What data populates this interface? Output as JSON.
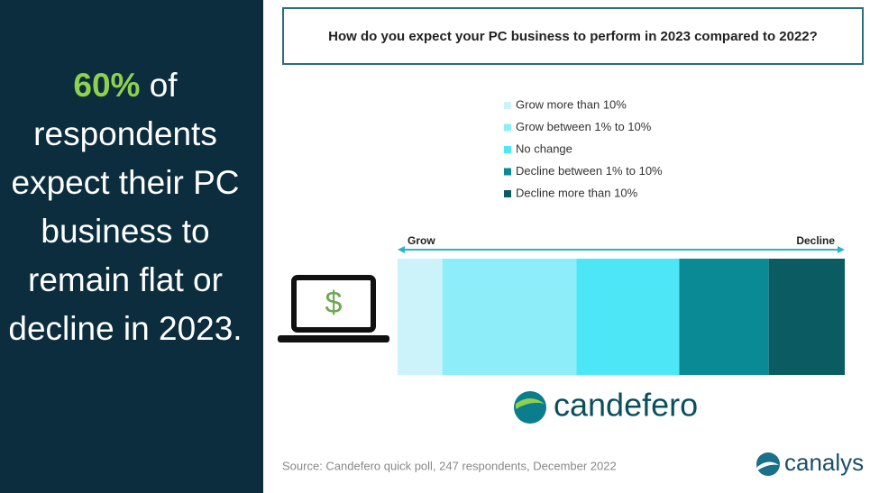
{
  "sidebar": {
    "highlight": "60%",
    "text": "of respondents expect their PC business to remain flat or decline in 2023."
  },
  "chart_data": {
    "type": "bar",
    "orientation": "horizontal",
    "stacked": true,
    "title": "How do you expect your PC business to perform in 2023 compared to 2022?",
    "series": [
      {
        "name": "Grow more than 10%",
        "color": "#cdf3fa",
        "values": [
          10
        ]
      },
      {
        "name": "Grow between 1% to 10%",
        "color": "#8deefa",
        "values": [
          30
        ]
      },
      {
        "name": "No change",
        "color": "#4ce6f7",
        "values": [
          23
        ]
      },
      {
        "name": "Decline between 1% to 10%",
        "color": "#0a8a94",
        "values": [
          20
        ]
      },
      {
        "name": "Decline more than 10%",
        "color": "#0a5c62",
        "values": [
          17
        ]
      }
    ],
    "xlim": [
      0,
      100
    ],
    "axis_labels": {
      "start": "Grow",
      "end": "Decline"
    }
  },
  "logos": {
    "brand": "candefero",
    "publisher": "canalys"
  },
  "source": "Source: Candefero quick poll, 247 respondents, December 2022"
}
